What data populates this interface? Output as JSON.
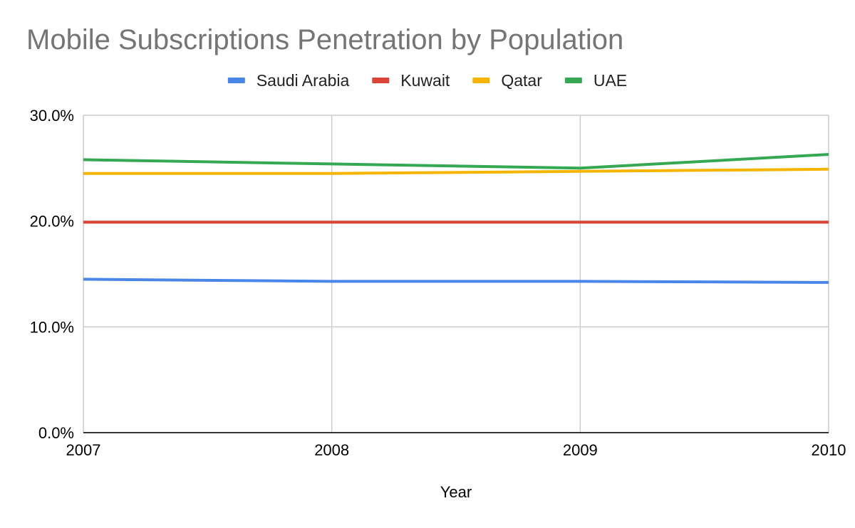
{
  "chart_data": {
    "type": "line",
    "title": "Mobile Subscriptions Penetration by Population",
    "xlabel": "Year",
    "ylabel": "",
    "x": [
      "2007",
      "2008",
      "2009",
      "2010"
    ],
    "ylim": [
      0,
      30
    ],
    "y_ticks": [
      0,
      10,
      20,
      30
    ],
    "y_tick_labels": [
      "0.0%",
      "10.0%",
      "20.0%",
      "30.0%"
    ],
    "grid": true,
    "legend_position": "top",
    "series": [
      {
        "name": "Saudi Arabia",
        "color": "#4a86e8",
        "values": [
          14.5,
          14.3,
          14.3,
          14.2
        ]
      },
      {
        "name": "Kuwait",
        "color": "#db4437",
        "values": [
          19.9,
          19.9,
          19.9,
          19.9
        ]
      },
      {
        "name": "Qatar",
        "color": "#f4b400",
        "values": [
          24.5,
          24.5,
          24.7,
          24.9
        ]
      },
      {
        "name": "UAE",
        "color": "#34a853",
        "values": [
          25.8,
          25.4,
          25.0,
          26.3
        ]
      }
    ]
  }
}
